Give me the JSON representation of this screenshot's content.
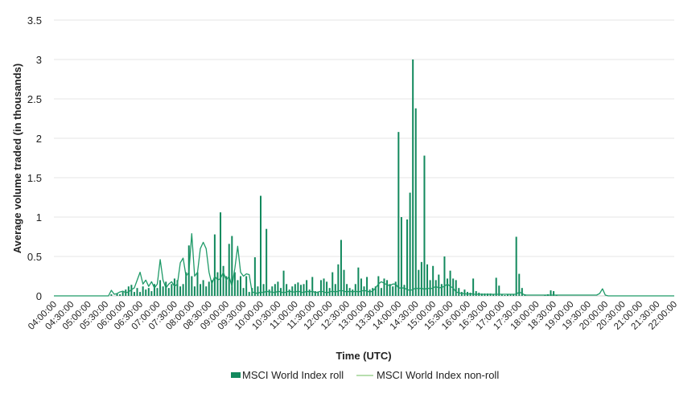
{
  "chart_data": {
    "type": "bar",
    "title": "",
    "xlabel": "Time (UTC)",
    "ylabel": "Average volume  traded (in thousands)",
    "ylim": [
      0,
      3.5
    ],
    "yticks": [
      0,
      0.5,
      1,
      1.5,
      2,
      2.5,
      3,
      3.5
    ],
    "ytick_labels": [
      "0",
      "0.5",
      "1",
      "1.5",
      "2",
      "2.5",
      "3",
      "3.5"
    ],
    "x_start": "04:00:00",
    "x_end": "22:00:00",
    "x_interval_minutes": 5,
    "xtick_labels": [
      "04:00:00",
      "04:30:00",
      "05:00:00",
      "05:30:00",
      "06:00:00",
      "06:30:00",
      "07:00:00",
      "07:30:00",
      "08:00:00",
      "08:30:00",
      "09:00:00",
      "09:30:00",
      "10:00:00",
      "10:30:00",
      "11:00:00",
      "11:30:00",
      "12:00:00",
      "12:30:00",
      "13:00:00",
      "13:30:00",
      "14:00:00",
      "14:30:00",
      "15:00:00",
      "15:30:00",
      "16:00:00",
      "16:30:00",
      "17:00:00",
      "17:30:00",
      "18:00:00",
      "18:30:00",
      "19:00:00",
      "19:30:00",
      "20:00:00",
      "20:30:00",
      "21:00:00",
      "21:30:00",
      "22:00:00"
    ],
    "grid": "horizontal",
    "legend_position": "bottom",
    "series": [
      {
        "name": "MSCI World Index roll",
        "kind": "bar",
        "color": "#12895d",
        "values": [
          0,
          0,
          0,
          0,
          0,
          0,
          0,
          0,
          0,
          0,
          0,
          0,
          0,
          0,
          0,
          0,
          0,
          0,
          0,
          0,
          0.02,
          0,
          0.03,
          0.02,
          0.05,
          0.08,
          0.12,
          0.14,
          0.05,
          0.1,
          0.05,
          0.12,
          0.08,
          0.1,
          0.06,
          0.15,
          0.1,
          0.2,
          0.12,
          0.18,
          0.1,
          0.15,
          0.22,
          0.2,
          0.12,
          0.15,
          0.3,
          0.64,
          0.25,
          0.12,
          0.3,
          0.15,
          0.2,
          0.12,
          0.18,
          0.2,
          0.78,
          0.3,
          1.06,
          0.38,
          0.25,
          0.66,
          0.76,
          0.3,
          0.2,
          0.25,
          0.1,
          0.25,
          0.05,
          0.1,
          0.49,
          0.12,
          1.27,
          0.15,
          0.85,
          0.08,
          0.12,
          0.15,
          0.18,
          0.1,
          0.32,
          0.15,
          0.08,
          0.12,
          0.15,
          0.17,
          0.14,
          0.15,
          0.2,
          0.08,
          0.24,
          0.06,
          0.05,
          0.2,
          0.22,
          0.18,
          0.1,
          0.3,
          0.15,
          0.4,
          0.71,
          0.33,
          0.15,
          0.1,
          0.08,
          0.15,
          0.36,
          0.22,
          0.12,
          0.24,
          0.08,
          0.1,
          0.12,
          0.25,
          0.1,
          0.22,
          0.2,
          0.15,
          0.12,
          0.18,
          2.08,
          1.0,
          0.14,
          0.97,
          1.31,
          3.0,
          2.38,
          0.33,
          0.43,
          1.78,
          0.4,
          0.2,
          0.38,
          0.2,
          0.27,
          0.15,
          0.5,
          0.22,
          0.32,
          0.22,
          0.2,
          0.1,
          0.05,
          0.08,
          0.05,
          0.04,
          0.22,
          0.06,
          0.04,
          0.03,
          0.03,
          0.03,
          0.03,
          0.02,
          0.23,
          0.13,
          0.02,
          0.01,
          0.02,
          0.02,
          0.02,
          0.75,
          0.28,
          0.1,
          0.02,
          0,
          0,
          0,
          0,
          0,
          0,
          0.01,
          0.02,
          0.07,
          0.06,
          0.01,
          0,
          0,
          0,
          0,
          0,
          0,
          0,
          0,
          0,
          0,
          0,
          0,
          0,
          0,
          0,
          0,
          0,
          0,
          0,
          0,
          0,
          0,
          0,
          0,
          0,
          0,
          0,
          0,
          0,
          0,
          0,
          0,
          0,
          0,
          0,
          0,
          0,
          0,
          0,
          0,
          0
        ]
      },
      {
        "name": "MSCI World Index non-roll",
        "kind": "line",
        "color": "#1f9a68",
        "values": [
          0,
          0,
          0,
          0,
          0,
          0,
          0,
          0,
          0,
          0,
          0,
          0,
          0,
          0,
          0,
          0,
          0,
          0,
          0,
          0,
          0.07,
          0.02,
          0.03,
          0.05,
          0.06,
          0.04,
          0.05,
          0.08,
          0.1,
          0.2,
          0.3,
          0.15,
          0.2,
          0.12,
          0.18,
          0.1,
          0.15,
          0.46,
          0.2,
          0.1,
          0.15,
          0.18,
          0.12,
          0.15,
          0.42,
          0.48,
          0.25,
          0.3,
          0.79,
          0.25,
          0.3,
          0.6,
          0.68,
          0.6,
          0.3,
          0.15,
          0.25,
          0.2,
          0.22,
          0.3,
          0.2,
          0.25,
          0.12,
          0.35,
          0.63,
          0.3,
          0.25,
          0.28,
          0.27,
          0.05,
          0.04,
          0.03,
          0.05,
          0.04,
          0.06,
          0.05,
          0.05,
          0.04,
          0.06,
          0.05,
          0.04,
          0.05,
          0.06,
          0.05,
          0.05,
          0.06,
          0.05,
          0.04,
          0.06,
          0.05,
          0.06,
          0.04,
          0.05,
          0.06,
          0.05,
          0.04,
          0.05,
          0.06,
          0.05,
          0.06,
          0.07,
          0.06,
          0.05,
          0.06,
          0.05,
          0.06,
          0.05,
          0.06,
          0.07,
          0.06,
          0.05,
          0.06,
          0.1,
          0.15,
          0.18,
          0.16,
          0.14,
          0.13,
          0.15,
          0.15,
          0.1,
          0.1,
          0.1,
          0.08,
          0.07,
          0.08,
          0.1,
          0.09,
          0.1,
          0.08,
          0.1,
          0.09,
          0.1,
          0.12,
          0.1,
          0.11,
          0.12,
          0.15,
          0.12,
          0.1,
          0.05,
          0.04,
          0.03,
          0.03,
          0.02,
          0.03,
          0.02,
          0.02,
          0.02,
          0.02,
          0.02,
          0.02,
          0.02,
          0.02,
          0.02,
          0.02,
          0.02,
          0.02,
          0.02,
          0.02,
          0.02,
          0.02,
          0.05,
          0.03,
          0.01,
          0.01,
          0.01,
          0.01,
          0.01,
          0.01,
          0.01,
          0.01,
          0.01,
          0.01,
          0.01,
          0.01,
          0.01,
          0.01,
          0.01,
          0.01,
          0.01,
          0.01,
          0.01,
          0.01,
          0.01,
          0.01,
          0.01,
          0.01,
          0.01,
          0.01,
          0.03,
          0.09,
          0.01,
          0,
          0,
          0,
          0,
          0,
          0,
          0,
          0,
          0,
          0,
          0,
          0,
          0,
          0,
          0,
          0,
          0,
          0,
          0,
          0,
          0,
          0,
          0,
          0
        ]
      }
    ]
  }
}
